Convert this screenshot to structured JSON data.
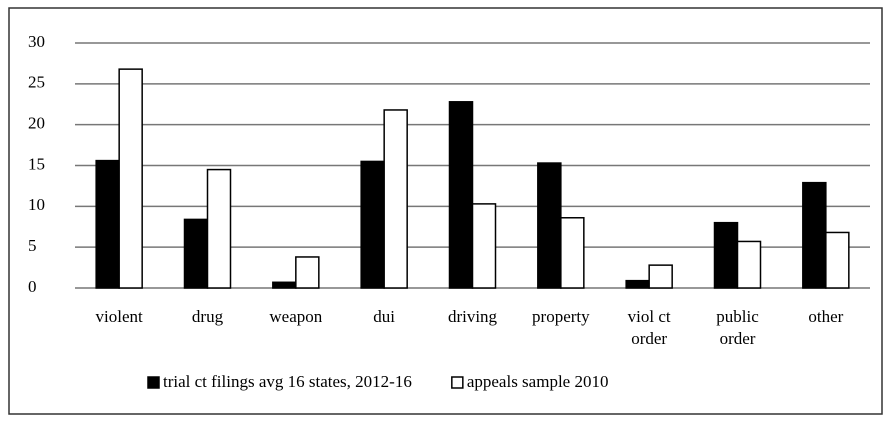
{
  "chart_data": {
    "type": "bar",
    "categories": [
      "violent",
      "drug",
      "weapon",
      "dui",
      "driving",
      "property",
      "viol ct order",
      "public order",
      "other"
    ],
    "series": [
      {
        "name": "trial ct filings avg 16 states, 2012-16",
        "color": "#000000",
        "values": [
          15.6,
          8.4,
          0.7,
          15.5,
          22.8,
          15.3,
          0.9,
          8.0,
          12.9
        ]
      },
      {
        "name": "appeals sample 2010",
        "color": "#ffffff",
        "values": [
          26.8,
          14.5,
          3.8,
          21.8,
          10.3,
          8.6,
          2.8,
          5.7,
          6.8
        ]
      }
    ],
    "ylim": [
      0,
      30
    ],
    "yticks": [
      0,
      5,
      10,
      15,
      20,
      25,
      30
    ],
    "grid": true,
    "legend": "bottom"
  }
}
